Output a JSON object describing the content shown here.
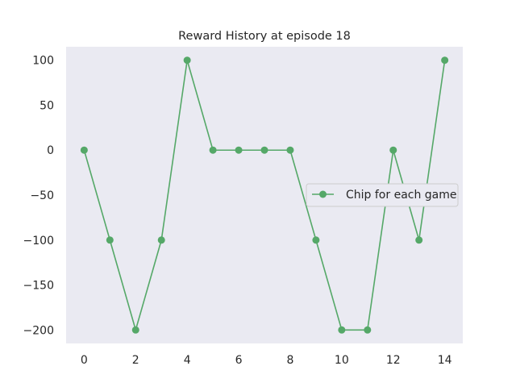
{
  "chart_data": {
    "type": "line",
    "title": "Reward History at episode 18",
    "xlabel": "",
    "ylabel": "",
    "x": [
      0,
      1,
      2,
      3,
      4,
      5,
      6,
      7,
      8,
      9,
      10,
      11,
      12,
      13,
      14
    ],
    "series": [
      {
        "name": "Chip for each game",
        "values": [
          0,
          -100,
          -200,
          -100,
          100,
          0,
          0,
          0,
          0,
          -100,
          -200,
          -200,
          0,
          -100,
          100
        ],
        "color": "#55a868",
        "marker": "circle"
      }
    ],
    "xlim": [
      -0.7,
      14.7
    ],
    "ylim": [
      -215,
      115
    ],
    "xticks": [
      0,
      2,
      4,
      6,
      8,
      10,
      12,
      14
    ],
    "yticks": [
      100,
      50,
      0,
      -50,
      -100,
      -150,
      -200
    ],
    "xtick_labels": [
      "0",
      "2",
      "4",
      "6",
      "8",
      "10",
      "12",
      "14"
    ],
    "ytick_labels": [
      "100",
      "50",
      "0",
      "−50",
      "−100",
      "−150",
      "−200"
    ],
    "grid": false,
    "legend_position": "center-right",
    "plot_background": "#eaeaf2"
  }
}
